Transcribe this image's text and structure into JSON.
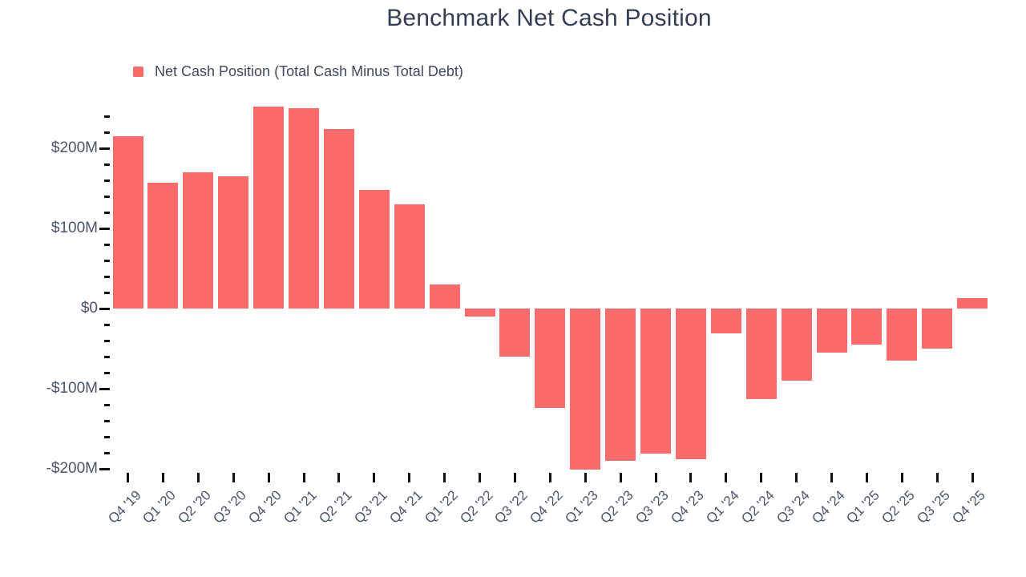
{
  "chart": {
    "title": "Benchmark Net Cash Position",
    "legend_label": "Net Cash Position (Total Cash Minus Total Debt)"
  },
  "colors": {
    "bar": "#fc6b6b",
    "title_text": "#333e52",
    "axis_text": "#49556b",
    "legend_text": "#3d4a5e",
    "tick": "#111111"
  },
  "chart_data": {
    "type": "bar",
    "title": "Benchmark Net Cash Position",
    "legend": [
      "Net Cash Position (Total Cash Minus Total Debt)"
    ],
    "legend_position": "top-left",
    "grid": false,
    "categories": [
      "Q4 '19",
      "Q1 '20",
      "Q2 '20",
      "Q3 '20",
      "Q4 '20",
      "Q1 '21",
      "Q2 '21",
      "Q3 '21",
      "Q4 '21",
      "Q1 '22",
      "Q2 '22",
      "Q3 '22",
      "Q4 '22",
      "Q1 '23",
      "Q2 '23",
      "Q3 '23",
      "Q4 '23",
      "Q1 '24",
      "Q2 '24",
      "Q3 '24",
      "Q4 '24",
      "Q1 '25",
      "Q2 '25",
      "Q3 '25",
      "Q4 '25"
    ],
    "values": [
      215,
      157,
      170,
      165,
      252,
      250,
      224,
      148,
      130,
      30,
      -10,
      -60,
      -124,
      -201,
      -190,
      -181,
      -188,
      -31,
      -113,
      -90,
      -55,
      -45,
      -65,
      -50,
      13
    ],
    "value_unit": "$M",
    "y_axis": {
      "tick_labels": [
        "$200M",
        "$100M",
        "$0",
        "-$100M",
        "-$200M"
      ],
      "tick_values": [
        200,
        100,
        0,
        -100,
        -200
      ],
      "minor_tick_step": 20,
      "ylim": [
        -200,
        240
      ]
    }
  }
}
